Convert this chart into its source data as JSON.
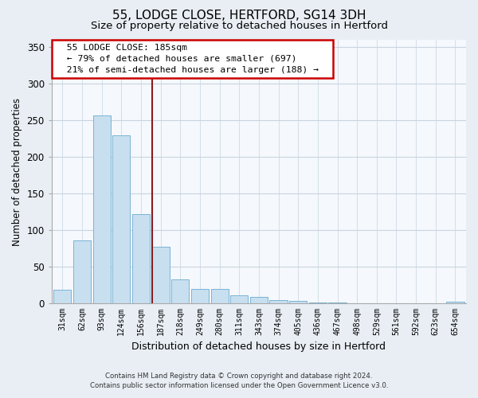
{
  "title": "55, LODGE CLOSE, HERTFORD, SG14 3DH",
  "subtitle": "Size of property relative to detached houses in Hertford",
  "xlabel": "Distribution of detached houses by size in Hertford",
  "ylabel": "Number of detached properties",
  "categories": [
    "31sqm",
    "62sqm",
    "93sqm",
    "124sqm",
    "156sqm",
    "187sqm",
    "218sqm",
    "249sqm",
    "280sqm",
    "311sqm",
    "343sqm",
    "374sqm",
    "405sqm",
    "436sqm",
    "467sqm",
    "498sqm",
    "529sqm",
    "561sqm",
    "592sqm",
    "623sqm",
    "654sqm"
  ],
  "values": [
    19,
    86,
    257,
    230,
    122,
    77,
    33,
    20,
    20,
    11,
    9,
    4,
    3,
    1,
    1,
    0,
    0,
    0,
    0,
    0,
    2
  ],
  "bar_color": "#c8dff0",
  "bar_edge_color": "#7ab4d4",
  "highlight_bar_index": 5,
  "annotation_title": "55 LODGE CLOSE: 185sqm",
  "annotation_line1": "← 79% of detached houses are smaller (697)",
  "annotation_line2": "21% of semi-detached houses are larger (188) →",
  "annotation_box_facecolor": "#ffffff",
  "annotation_box_edgecolor": "#cc0000",
  "red_line_color": "#8b1a1a",
  "ylim": [
    0,
    360
  ],
  "yticks": [
    0,
    50,
    100,
    150,
    200,
    250,
    300,
    350
  ],
  "footer1": "Contains HM Land Registry data © Crown copyright and database right 2024.",
  "footer2": "Contains public sector information licensed under the Open Government Licence v3.0.",
  "bg_color": "#e8eef4",
  "plot_bg_color": "#f5f8fc",
  "title_fontsize": 11,
  "subtitle_fontsize": 9.5,
  "grid_color": "#c8d4e0"
}
